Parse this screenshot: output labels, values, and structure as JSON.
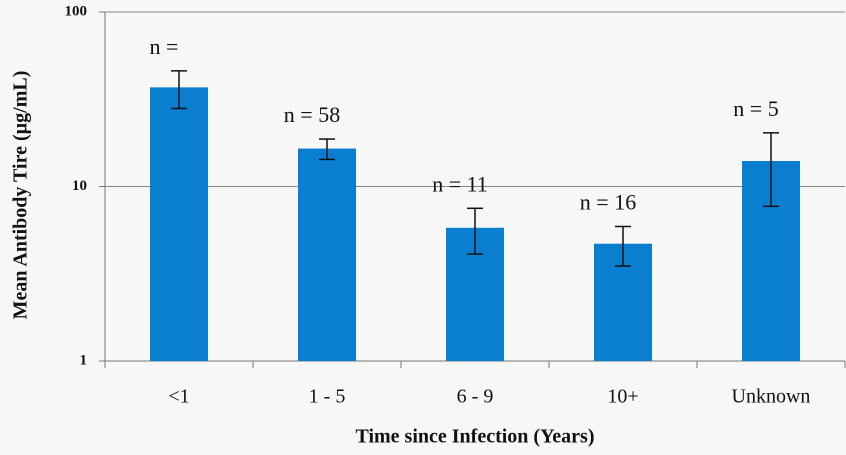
{
  "chart_data": {
    "type": "bar",
    "xlabel": "Time since Infection (Years)",
    "ylabel": "Mean Antibody Tire (µg/mL)",
    "categories": [
      "<1",
      "1 - 5",
      "6 - 9",
      "10+",
      "Unknown"
    ],
    "values": [
      37,
      16.5,
      5.8,
      4.7,
      14
    ],
    "errors": [
      9,
      2.2,
      1.7,
      1.2,
      6.3
    ],
    "annotations": [
      "n =",
      "n = 58",
      "n = 11",
      "n = 16",
      "n = 5"
    ],
    "color": "#0b7fcf",
    "log_scale": true,
    "ylim": [
      1,
      100
    ],
    "yticks": [
      1,
      10,
      100
    ],
    "grid": true
  }
}
